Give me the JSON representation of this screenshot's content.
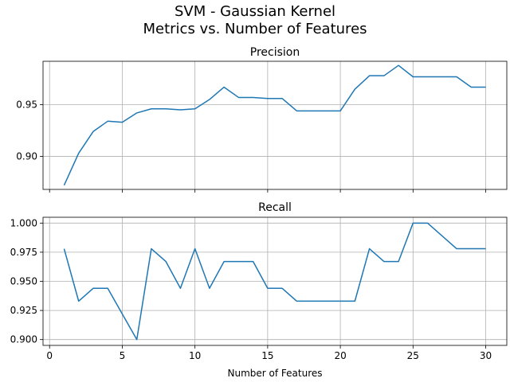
{
  "suptitle": [
    "SVM - Gaussian Kernel",
    "Metrics vs. Number of Features"
  ],
  "colors": {
    "line": "#1f77b4",
    "grid": "#b0b0b0",
    "axes": "#000000"
  },
  "chart_data": [
    {
      "type": "line",
      "title": "Precision",
      "xlabel": "",
      "ylabel": "",
      "grid": true,
      "xlim": [
        -0.45,
        31.45
      ],
      "ylim": [
        0.868,
        0.992
      ],
      "xticks": [
        0,
        5,
        10,
        15,
        20,
        25,
        30
      ],
      "xtick_labels_shown": false,
      "yticks": [
        0.9,
        0.95
      ],
      "ytick_labels": [
        "0.90",
        "0.95"
      ],
      "x": [
        1,
        2,
        3,
        4,
        5,
        6,
        7,
        8,
        9,
        10,
        11,
        12,
        13,
        14,
        15,
        16,
        17,
        18,
        19,
        20,
        21,
        22,
        23,
        24,
        25,
        26,
        27,
        28,
        29,
        30
      ],
      "series": [
        {
          "values": [
            0.872,
            0.903,
            0.924,
            0.934,
            0.933,
            0.942,
            0.946,
            0.946,
            0.945,
            0.946,
            0.955,
            0.967,
            0.957,
            0.957,
            0.956,
            0.956,
            0.944,
            0.944,
            0.944,
            0.944,
            0.965,
            0.978,
            0.978,
            0.988,
            0.977,
            0.977,
            0.977,
            0.977,
            0.967,
            0.967
          ]
        }
      ]
    },
    {
      "type": "line",
      "title": "Recall",
      "xlabel": "Number of Features",
      "ylabel": "",
      "grid": true,
      "xlim": [
        -0.45,
        31.45
      ],
      "ylim": [
        0.895,
        1.005
      ],
      "xticks": [
        0,
        5,
        10,
        15,
        20,
        25,
        30
      ],
      "xtick_labels": [
        "0",
        "5",
        "10",
        "15",
        "20",
        "25",
        "30"
      ],
      "yticks": [
        0.9,
        0.925,
        0.95,
        0.975,
        1.0
      ],
      "ytick_labels": [
        "0.900",
        "0.925",
        "0.950",
        "0.975",
        "1.000"
      ],
      "x": [
        1,
        2,
        3,
        4,
        5,
        6,
        7,
        8,
        9,
        10,
        11,
        12,
        13,
        14,
        15,
        16,
        17,
        18,
        19,
        20,
        21,
        22,
        23,
        24,
        25,
        26,
        27,
        28,
        29,
        30
      ],
      "series": [
        {
          "values": [
            0.978,
            0.933,
            0.944,
            0.944,
            0.922,
            0.9,
            0.978,
            0.967,
            0.944,
            0.978,
            0.944,
            0.967,
            0.967,
            0.967,
            0.944,
            0.944,
            0.933,
            0.933,
            0.933,
            0.933,
            0.933,
            0.978,
            0.967,
            0.967,
            1.0,
            1.0,
            0.989,
            0.978,
            0.978,
            0.978
          ]
        }
      ]
    }
  ]
}
